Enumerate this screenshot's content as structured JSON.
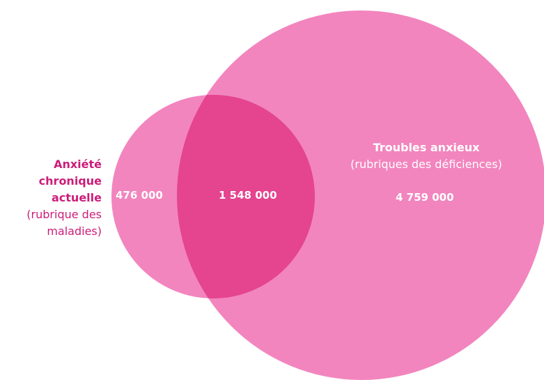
{
  "colors": {
    "large_circle": "#f285be",
    "small_circle": "#f285be",
    "overlap": "#e5448f",
    "label_accent": "#cc1d79",
    "count_text": "#ffffff"
  },
  "sets": {
    "chronic_anxiety": {
      "title_line1": "Anxiété",
      "title_line2": "chronique",
      "title_line3": "actuelle",
      "subtitle_line1": "(rubrique des",
      "subtitle_line2": "maladies)",
      "only_count": "476 000"
    },
    "anxiety_disorders": {
      "title": "Troubles anxieux",
      "subtitle": "(rubriques des déficiences)",
      "only_count": "4 759 000"
    },
    "overlap_count": "1 548 000"
  }
}
